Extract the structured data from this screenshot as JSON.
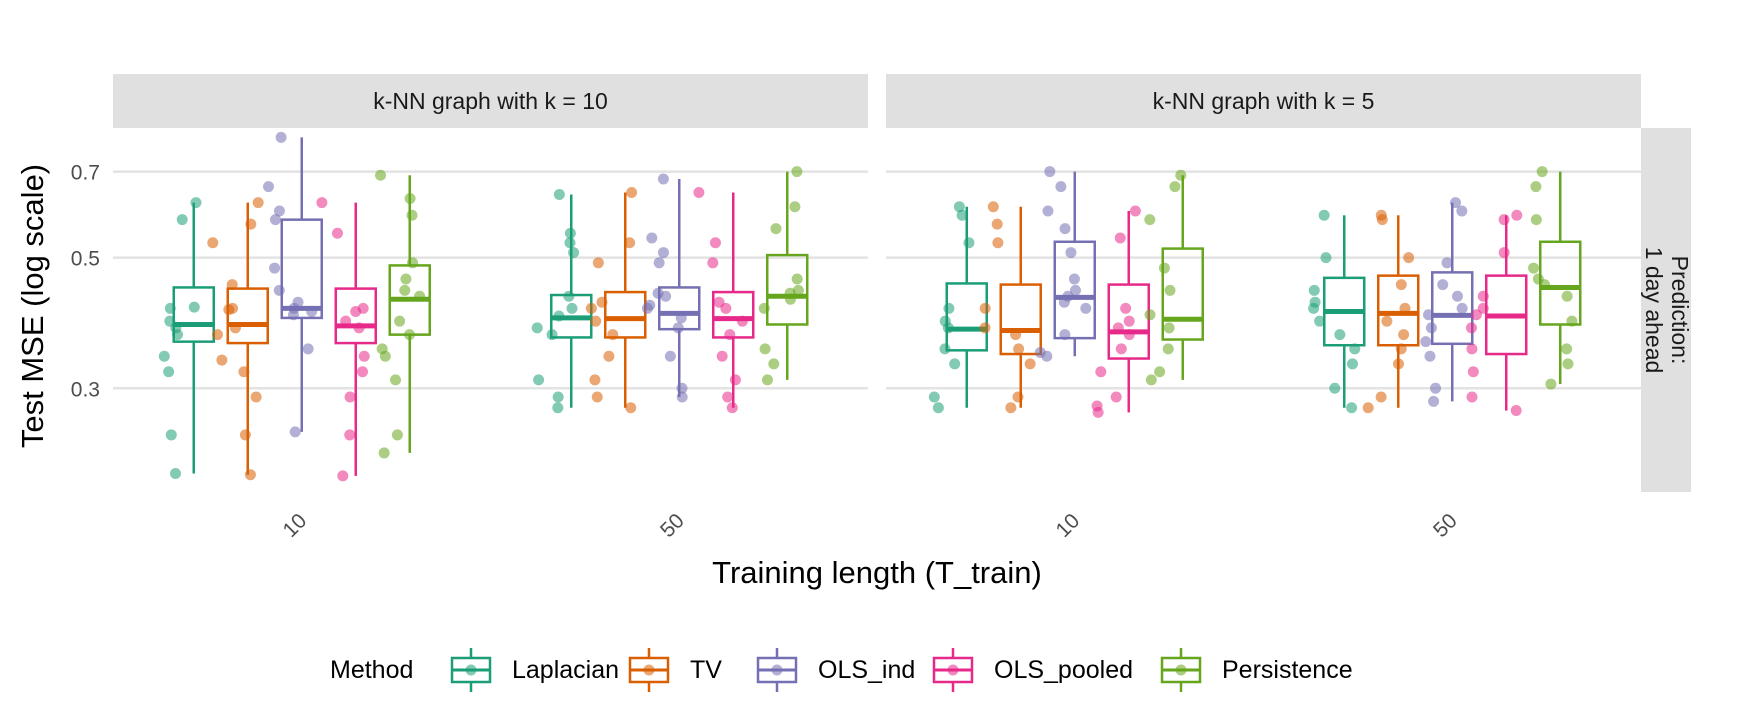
{
  "chart_data": {
    "type": "boxplot",
    "ylabel": "Test MSE (log scale)",
    "xlabel": "Training length (T_train)",
    "yscale": "log",
    "ylim": [
      0.2,
      0.83
    ],
    "yticks": [
      0.3,
      0.5,
      0.7
    ],
    "ytick_labels": [
      "0.3",
      "0.5",
      "0.7"
    ],
    "categories": [
      "10",
      "50"
    ],
    "row_strip": [
      "Prediction:",
      "1 day ahead"
    ],
    "legend": {
      "title": "Method",
      "position": "bottom",
      "entries": [
        "Laplacian",
        "TV",
        "OLS_ind",
        "OLS_pooled",
        "Persistence"
      ]
    },
    "colors": {
      "Laplacian": "#1b9e77",
      "TV": "#d95f02",
      "OLS_ind": "#7570b3",
      "OLS_pooled": "#e7298a",
      "Persistence": "#66a61e"
    },
    "panels": [
      {
        "title": "k-NN graph with k = 10",
        "groups": [
          {
            "category": "10",
            "boxes": [
              {
                "method": "Laplacian",
                "min": 0.215,
                "q1": 0.36,
                "median": 0.385,
                "q3": 0.445,
                "max": 0.62,
                "points": [
                  0.215,
                  0.25,
                  0.32,
                  0.34,
                  0.37,
                  0.38,
                  0.39,
                  0.41,
                  0.412,
                  0.58,
                  0.62
                ]
              },
              {
                "method": "TV",
                "min": 0.214,
                "q1": 0.358,
                "median": 0.385,
                "q3": 0.443,
                "max": 0.62,
                "points": [
                  0.214,
                  0.25,
                  0.29,
                  0.32,
                  0.335,
                  0.37,
                  0.38,
                  0.408,
                  0.41,
                  0.45,
                  0.53,
                  0.57,
                  0.62
                ]
              },
              {
                "method": "OLS_ind",
                "min": 0.253,
                "q1": 0.395,
                "median": 0.41,
                "q3": 0.58,
                "max": 0.8,
                "points": [
                  0.253,
                  0.35,
                  0.4,
                  0.405,
                  0.41,
                  0.42,
                  0.44,
                  0.48,
                  0.58,
                  0.6,
                  0.66,
                  0.8
                ]
              },
              {
                "method": "OLS_pooled",
                "min": 0.213,
                "q1": 0.358,
                "median": 0.383,
                "q3": 0.443,
                "max": 0.62,
                "points": [
                  0.213,
                  0.25,
                  0.29,
                  0.32,
                  0.34,
                  0.38,
                  0.39,
                  0.405,
                  0.41,
                  0.55,
                  0.62
                ]
              },
              {
                "method": "Persistence",
                "min": 0.233,
                "q1": 0.37,
                "median": 0.425,
                "q3": 0.485,
                "max": 0.69,
                "points": [
                  0.233,
                  0.25,
                  0.31,
                  0.34,
                  0.35,
                  0.37,
                  0.39,
                  0.43,
                  0.44,
                  0.46,
                  0.49,
                  0.59,
                  0.63,
                  0.69
                ]
              }
            ]
          },
          {
            "category": "50",
            "boxes": [
              {
                "method": "Laplacian",
                "min": 0.278,
                "q1": 0.366,
                "median": 0.395,
                "q3": 0.432,
                "max": 0.64,
                "points": [
                  0.278,
                  0.29,
                  0.31,
                  0.37,
                  0.38,
                  0.398,
                  0.41,
                  0.43,
                  0.51,
                  0.53,
                  0.55,
                  0.64
                ]
              },
              {
                "method": "TV",
                "min": 0.278,
                "q1": 0.366,
                "median": 0.394,
                "q3": 0.437,
                "max": 0.645,
                "points": [
                  0.278,
                  0.29,
                  0.31,
                  0.34,
                  0.37,
                  0.39,
                  0.41,
                  0.42,
                  0.49,
                  0.53,
                  0.645
                ]
              },
              {
                "method": "OLS_ind",
                "min": 0.29,
                "q1": 0.378,
                "median": 0.402,
                "q3": 0.445,
                "max": 0.68,
                "points": [
                  0.29,
                  0.3,
                  0.34,
                  0.38,
                  0.395,
                  0.41,
                  0.415,
                  0.43,
                  0.435,
                  0.49,
                  0.51,
                  0.54,
                  0.68
                ]
              },
              {
                "method": "OLS_pooled",
                "min": 0.278,
                "q1": 0.366,
                "median": 0.394,
                "q3": 0.437,
                "max": 0.645,
                "points": [
                  0.278,
                  0.29,
                  0.31,
                  0.34,
                  0.37,
                  0.39,
                  0.41,
                  0.42,
                  0.49,
                  0.53,
                  0.645
                ]
              },
              {
                "method": "Persistence",
                "min": 0.31,
                "q1": 0.385,
                "median": 0.43,
                "q3": 0.505,
                "max": 0.7,
                "points": [
                  0.31,
                  0.33,
                  0.35,
                  0.41,
                  0.425,
                  0.435,
                  0.44,
                  0.46,
                  0.56,
                  0.61,
                  0.7
                ]
              }
            ]
          }
        ]
      },
      {
        "title": "k-NN graph with k = 5",
        "groups": [
          {
            "category": "10",
            "boxes": [
              {
                "method": "Laplacian",
                "min": 0.278,
                "q1": 0.348,
                "median": 0.378,
                "q3": 0.452,
                "max": 0.61,
                "points": [
                  0.278,
                  0.29,
                  0.33,
                  0.35,
                  0.38,
                  0.39,
                  0.41,
                  0.53,
                  0.59,
                  0.61
                ]
              },
              {
                "method": "TV",
                "min": 0.278,
                "q1": 0.343,
                "median": 0.376,
                "q3": 0.45,
                "max": 0.61,
                "points": [
                  0.278,
                  0.29,
                  0.33,
                  0.35,
                  0.37,
                  0.38,
                  0.41,
                  0.53,
                  0.57,
                  0.61
                ]
              },
              {
                "method": "OLS_ind",
                "min": 0.34,
                "q1": 0.365,
                "median": 0.428,
                "q3": 0.532,
                "max": 0.7,
                "points": [
                  0.34,
                  0.345,
                  0.37,
                  0.41,
                  0.42,
                  0.43,
                  0.44,
                  0.46,
                  0.51,
                  0.56,
                  0.6,
                  0.66,
                  0.7
                ]
              },
              {
                "method": "OLS_pooled",
                "min": 0.273,
                "q1": 0.337,
                "median": 0.374,
                "q3": 0.45,
                "max": 0.6,
                "points": [
                  0.273,
                  0.28,
                  0.29,
                  0.32,
                  0.35,
                  0.37,
                  0.38,
                  0.39,
                  0.41,
                  0.54,
                  0.6
                ]
              },
              {
                "method": "Persistence",
                "min": 0.31,
                "q1": 0.363,
                "median": 0.393,
                "q3": 0.518,
                "max": 0.69,
                "points": [
                  0.31,
                  0.32,
                  0.35,
                  0.38,
                  0.4,
                  0.44,
                  0.48,
                  0.58,
                  0.66,
                  0.69
                ]
              }
            ]
          },
          {
            "category": "50",
            "boxes": [
              {
                "method": "Laplacian",
                "min": 0.278,
                "q1": 0.355,
                "median": 0.405,
                "q3": 0.462,
                "max": 0.59,
                "points": [
                  0.278,
                  0.3,
                  0.33,
                  0.35,
                  0.37,
                  0.39,
                  0.41,
                  0.42,
                  0.44,
                  0.5,
                  0.59
                ]
              },
              {
                "method": "TV",
                "min": 0.278,
                "q1": 0.355,
                "median": 0.402,
                "q3": 0.466,
                "max": 0.59,
                "points": [
                  0.278,
                  0.29,
                  0.33,
                  0.35,
                  0.37,
                  0.39,
                  0.41,
                  0.45,
                  0.5,
                  0.58,
                  0.59
                ]
              },
              {
                "method": "OLS_ind",
                "min": 0.285,
                "q1": 0.357,
                "median": 0.399,
                "q3": 0.472,
                "max": 0.62,
                "points": [
                  0.285,
                  0.3,
                  0.34,
                  0.36,
                  0.38,
                  0.4,
                  0.41,
                  0.43,
                  0.45,
                  0.49,
                  0.6,
                  0.62
                ]
              },
              {
                "method": "OLS_pooled",
                "min": 0.275,
                "q1": 0.343,
                "median": 0.398,
                "q3": 0.466,
                "max": 0.59,
                "points": [
                  0.275,
                  0.29,
                  0.32,
                  0.35,
                  0.38,
                  0.4,
                  0.41,
                  0.43,
                  0.51,
                  0.58,
                  0.59
                ]
              },
              {
                "method": "Persistence",
                "min": 0.305,
                "q1": 0.385,
                "median": 0.445,
                "q3": 0.532,
                "max": 0.7,
                "points": [
                  0.305,
                  0.33,
                  0.35,
                  0.39,
                  0.43,
                  0.45,
                  0.46,
                  0.48,
                  0.58,
                  0.66,
                  0.7
                ]
              }
            ]
          }
        ]
      }
    ]
  }
}
